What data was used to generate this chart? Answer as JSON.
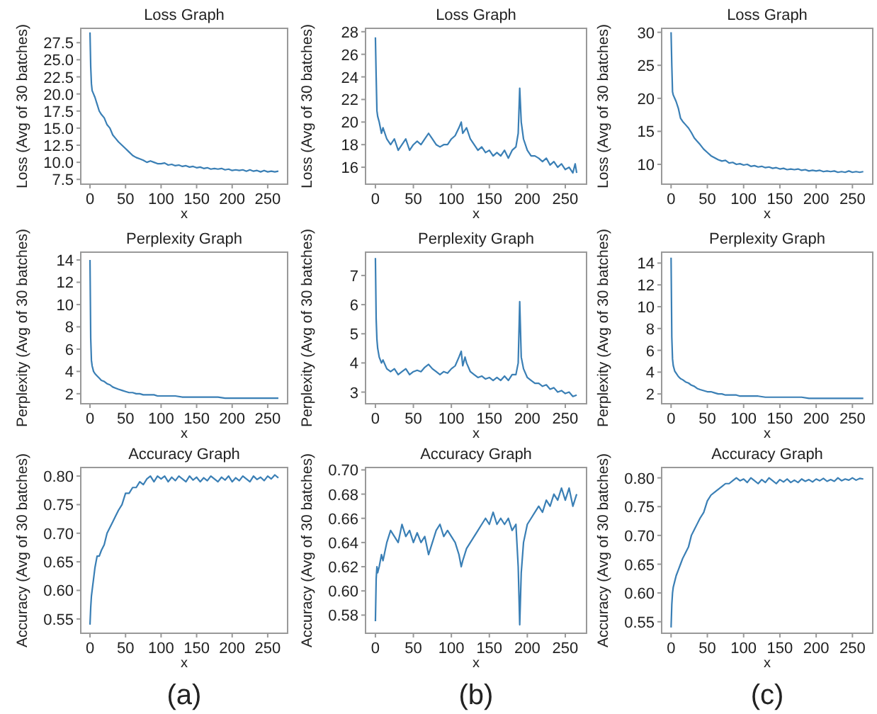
{
  "chart_data": [
    {
      "type": "line",
      "title": "Loss Graph",
      "xlabel": "x",
      "ylabel": "Loss (Avg of 30 batches)",
      "color": "#3a7fb5",
      "xlim": [
        -13,
        278
      ],
      "ylim": [
        6.8,
        29.6
      ],
      "xticks": [
        0,
        50,
        100,
        150,
        200,
        250
      ],
      "yticks": [
        7.5,
        {
          "value": 10,
          "label": "10.0"
        },
        12.5,
        {
          "value": 15,
          "label": "15.0"
        },
        17.5,
        {
          "value": 20,
          "label": "20.0"
        },
        22.5,
        {
          "value": 25,
          "label": "25.0"
        },
        27.5
      ],
      "x": [
        0,
        1,
        2,
        3,
        5,
        7,
        10,
        13,
        16,
        20,
        24,
        28,
        32,
        36,
        40,
        45,
        50,
        55,
        60,
        65,
        70,
        75,
        80,
        85,
        90,
        95,
        100,
        105,
        110,
        115,
        120,
        125,
        130,
        135,
        140,
        145,
        150,
        155,
        160,
        165,
        170,
        175,
        180,
        185,
        190,
        195,
        200,
        205,
        210,
        215,
        220,
        225,
        230,
        235,
        240,
        245,
        250,
        255,
        260,
        265
      ],
      "values": [
        29,
        24,
        21.5,
        20.5,
        20,
        19.5,
        18.5,
        17.5,
        17,
        16.5,
        15.5,
        15,
        14,
        13.5,
        13,
        12.5,
        12,
        11.5,
        11,
        10.7,
        10.5,
        10.3,
        10,
        10.2,
        10,
        9.8,
        9.8,
        9.9,
        9.6,
        9.7,
        9.5,
        9.6,
        9.4,
        9.5,
        9.3,
        9.4,
        9.2,
        9.3,
        9.1,
        9.2,
        9.0,
        9.1,
        9.0,
        9.1,
        8.9,
        9.0,
        8.8,
        8.9,
        8.8,
        8.9,
        8.7,
        8.9,
        8.7,
        8.8,
        8.6,
        8.8,
        8.6,
        8.7,
        8.6,
        8.7
      ]
    },
    {
      "type": "line",
      "title": "Loss Graph",
      "xlabel": "x",
      "ylabel": "Loss (Avg of 30 batches)",
      "color": "#3a7fb5",
      "xlim": [
        -13,
        278
      ],
      "ylim": [
        14.5,
        28.3
      ],
      "xticks": [
        0,
        50,
        100,
        150,
        200,
        250
      ],
      "yticks": [
        16,
        18,
        20,
        22,
        24,
        26,
        28
      ],
      "x": [
        0,
        1,
        2,
        3,
        5,
        8,
        10,
        15,
        20,
        25,
        30,
        35,
        40,
        45,
        50,
        55,
        60,
        65,
        70,
        75,
        80,
        85,
        90,
        95,
        100,
        105,
        110,
        113,
        115,
        120,
        125,
        130,
        135,
        140,
        145,
        150,
        155,
        160,
        165,
        170,
        175,
        180,
        185,
        188,
        190,
        192,
        195,
        200,
        205,
        210,
        215,
        220,
        225,
        230,
        235,
        240,
        245,
        250,
        255,
        260,
        263,
        265
      ],
      "values": [
        27.5,
        24,
        21,
        20.5,
        20,
        19,
        19.5,
        18.5,
        18,
        18.5,
        17.5,
        18,
        18.5,
        17.5,
        18,
        18.3,
        18,
        18.5,
        19,
        18.5,
        18,
        17.8,
        18,
        18,
        18.5,
        18.8,
        19.5,
        20,
        19,
        19.5,
        18.5,
        18,
        17.5,
        17.8,
        17.3,
        17.5,
        17,
        17.3,
        17,
        17.5,
        16.8,
        17.5,
        17.8,
        19,
        23,
        20,
        18.5,
        17.5,
        17,
        17,
        16.8,
        16.5,
        16.8,
        16.2,
        16.5,
        16,
        16.3,
        15.8,
        16,
        15.5,
        16.3,
        15.5
      ]
    },
    {
      "type": "line",
      "title": "Loss Graph",
      "xlabel": "x",
      "ylabel": "Loss (Avg of 30 batches)",
      "color": "#3a7fb5",
      "xlim": [
        -13,
        278
      ],
      "ylim": [
        7,
        30.6
      ],
      "xticks": [
        0,
        50,
        100,
        150,
        200,
        250
      ],
      "yticks": [
        10,
        15,
        20,
        25,
        30
      ],
      "x": [
        0,
        1,
        2,
        3,
        5,
        7,
        10,
        13,
        16,
        20,
        24,
        28,
        32,
        36,
        40,
        45,
        50,
        55,
        60,
        65,
        70,
        75,
        80,
        85,
        90,
        95,
        100,
        105,
        110,
        115,
        120,
        125,
        130,
        135,
        140,
        145,
        150,
        155,
        160,
        165,
        170,
        175,
        180,
        185,
        190,
        195,
        200,
        205,
        210,
        215,
        220,
        225,
        230,
        235,
        240,
        245,
        250,
        255,
        260,
        265
      ],
      "values": [
        30,
        25,
        21,
        20.5,
        20,
        19.5,
        18.5,
        17,
        16.5,
        16,
        15.5,
        14.8,
        14,
        13.5,
        13,
        12.3,
        11.8,
        11.3,
        11,
        10.7,
        10.5,
        10.6,
        10.2,
        10.3,
        10,
        10.1,
        9.9,
        10,
        9.7,
        9.8,
        9.6,
        9.7,
        9.5,
        9.6,
        9.4,
        9.5,
        9.3,
        9.4,
        9.2,
        9.3,
        9.2,
        9.3,
        9.1,
        9.2,
        9.0,
        9.1,
        9.0,
        9.1,
        8.9,
        9.0,
        8.9,
        9.0,
        8.8,
        8.9,
        8.8,
        9.0,
        8.8,
        8.9,
        8.8,
        8.9
      ]
    },
    {
      "type": "line",
      "title": "Perplexity Graph",
      "xlabel": "x",
      "ylabel": "Perplexity (Avg of 30 batches)",
      "color": "#3a7fb5",
      "xlim": [
        -13,
        278
      ],
      "ylim": [
        1.1,
        14.7
      ],
      "xticks": [
        0,
        50,
        100,
        150,
        200,
        250
      ],
      "yticks": [
        2,
        4,
        6,
        8,
        10,
        12,
        14
      ],
      "x": [
        0,
        1,
        2,
        3,
        5,
        7,
        10,
        13,
        16,
        20,
        24,
        28,
        32,
        36,
        40,
        45,
        50,
        55,
        60,
        65,
        70,
        75,
        80,
        85,
        90,
        95,
        100,
        110,
        120,
        130,
        140,
        150,
        160,
        170,
        180,
        190,
        200,
        210,
        220,
        230,
        240,
        250,
        260,
        265
      ],
      "values": [
        14,
        7,
        5,
        4.5,
        4,
        3.8,
        3.6,
        3.4,
        3.2,
        3.1,
        2.9,
        2.8,
        2.6,
        2.5,
        2.4,
        2.3,
        2.2,
        2.1,
        2.1,
        2,
        2,
        1.9,
        1.9,
        1.9,
        1.9,
        1.8,
        1.8,
        1.8,
        1.8,
        1.7,
        1.7,
        1.7,
        1.7,
        1.7,
        1.7,
        1.6,
        1.6,
        1.6,
        1.6,
        1.6,
        1.6,
        1.6,
        1.6,
        1.6
      ]
    },
    {
      "type": "line",
      "title": "Perplexity Graph",
      "xlabel": "x",
      "ylabel": "Perplexity (Avg of 30 batches)",
      "color": "#3a7fb5",
      "xlim": [
        -13,
        278
      ],
      "ylim": [
        2.6,
        7.8
      ],
      "xticks": [
        0,
        50,
        100,
        150,
        200,
        250
      ],
      "yticks": [
        3,
        4,
        5,
        6,
        7
      ],
      "x": [
        0,
        1,
        2,
        3,
        5,
        8,
        10,
        15,
        20,
        25,
        30,
        35,
        40,
        45,
        50,
        55,
        60,
        65,
        70,
        75,
        80,
        85,
        90,
        95,
        100,
        105,
        110,
        113,
        115,
        118,
        120,
        125,
        130,
        135,
        140,
        145,
        150,
        155,
        160,
        165,
        170,
        175,
        180,
        185,
        188,
        190,
        192,
        195,
        200,
        205,
        210,
        215,
        220,
        225,
        230,
        235,
        240,
        245,
        250,
        255,
        260,
        265
      ],
      "values": [
        7.6,
        5.5,
        4.8,
        4.5,
        4.2,
        4,
        4.1,
        3.8,
        3.7,
        3.8,
        3.6,
        3.7,
        3.8,
        3.6,
        3.7,
        3.75,
        3.7,
        3.85,
        3.95,
        3.8,
        3.7,
        3.6,
        3.7,
        3.65,
        3.8,
        3.9,
        4.2,
        4.4,
        3.9,
        4.2,
        4,
        3.7,
        3.6,
        3.5,
        3.55,
        3.45,
        3.5,
        3.4,
        3.5,
        3.4,
        3.55,
        3.4,
        3.6,
        3.6,
        4,
        6.1,
        4.2,
        3.8,
        3.5,
        3.4,
        3.3,
        3.3,
        3.2,
        3.25,
        3.1,
        3.15,
        3,
        3.05,
        2.95,
        3,
        2.85,
        2.9
      ]
    },
    {
      "type": "line",
      "title": "Perplexity Graph",
      "xlabel": "x",
      "ylabel": "Perplexity (Avg of 30 batches)",
      "color": "#3a7fb5",
      "xlim": [
        -13,
        278
      ],
      "ylim": [
        1.1,
        15
      ],
      "xticks": [
        0,
        50,
        100,
        150,
        200,
        250
      ],
      "yticks": [
        2,
        4,
        6,
        8,
        10,
        12,
        14
      ],
      "x": [
        0,
        1,
        2,
        3,
        5,
        7,
        10,
        13,
        16,
        20,
        24,
        28,
        32,
        36,
        40,
        45,
        50,
        55,
        60,
        65,
        70,
        75,
        80,
        85,
        90,
        95,
        100,
        110,
        120,
        130,
        140,
        150,
        160,
        170,
        180,
        190,
        200,
        210,
        220,
        230,
        240,
        250,
        260,
        265
      ],
      "values": [
        14.5,
        7.2,
        5.2,
        4.6,
        4.1,
        3.9,
        3.6,
        3.4,
        3.3,
        3.1,
        3,
        2.8,
        2.7,
        2.5,
        2.4,
        2.3,
        2.2,
        2.2,
        2.1,
        2,
        2,
        1.9,
        1.9,
        1.9,
        1.9,
        1.8,
        1.8,
        1.8,
        1.8,
        1.7,
        1.7,
        1.7,
        1.7,
        1.7,
        1.7,
        1.6,
        1.6,
        1.6,
        1.6,
        1.6,
        1.6,
        1.6,
        1.6,
        1.6
      ]
    },
    {
      "type": "line",
      "title": "Accuracy Graph",
      "xlabel": "x",
      "ylabel": "Accuracy (Avg of 30 batches)",
      "color": "#3a7fb5",
      "xlim": [
        -13,
        278
      ],
      "ylim": [
        0.525,
        0.815
      ],
      "xticks": [
        0,
        50,
        100,
        150,
        200,
        250
      ],
      "yticks": [
        0.55,
        {
          "value": 0.6,
          "label": "0.60"
        },
        0.65,
        {
          "value": 0.7,
          "label": "0.70"
        },
        0.75,
        {
          "value": 0.8,
          "label": "0.80"
        }
      ],
      "annotations": [
        "(a)"
      ],
      "x": [
        0,
        1,
        2,
        3,
        5,
        7,
        10,
        13,
        16,
        20,
        24,
        28,
        32,
        36,
        40,
        45,
        50,
        55,
        60,
        65,
        70,
        75,
        80,
        85,
        90,
        95,
        100,
        105,
        110,
        115,
        120,
        125,
        130,
        135,
        140,
        145,
        150,
        155,
        160,
        165,
        170,
        175,
        180,
        185,
        190,
        195,
        200,
        205,
        210,
        215,
        220,
        225,
        230,
        235,
        240,
        245,
        250,
        255,
        260,
        265
      ],
      "values": [
        0.54,
        0.57,
        0.59,
        0.6,
        0.62,
        0.64,
        0.66,
        0.66,
        0.67,
        0.68,
        0.7,
        0.71,
        0.72,
        0.73,
        0.74,
        0.75,
        0.77,
        0.77,
        0.78,
        0.78,
        0.79,
        0.785,
        0.795,
        0.8,
        0.79,
        0.8,
        0.795,
        0.8,
        0.79,
        0.798,
        0.792,
        0.8,
        0.795,
        0.79,
        0.8,
        0.793,
        0.798,
        0.79,
        0.797,
        0.792,
        0.8,
        0.795,
        0.79,
        0.798,
        0.793,
        0.8,
        0.79,
        0.797,
        0.792,
        0.8,
        0.795,
        0.79,
        0.8,
        0.794,
        0.798,
        0.792,
        0.8,
        0.795,
        0.802,
        0.797
      ]
    },
    {
      "type": "line",
      "title": "Accuracy Graph",
      "xlabel": "x",
      "ylabel": "Accuracy (Avg of 30 batches)",
      "color": "#3a7fb5",
      "xlim": [
        -13,
        278
      ],
      "ylim": [
        0.565,
        0.702
      ],
      "xticks": [
        0,
        50,
        100,
        150,
        200,
        250
      ],
      "yticks": [
        0.58,
        {
          "value": 0.6,
          "label": "0.60"
        },
        0.62,
        0.64,
        0.66,
        0.68,
        {
          "value": 0.7,
          "label": "0.70"
        }
      ],
      "annotations": [
        "(b)"
      ],
      "x": [
        0,
        1,
        2,
        3,
        5,
        8,
        10,
        15,
        20,
        25,
        30,
        35,
        40,
        45,
        50,
        55,
        60,
        65,
        70,
        75,
        80,
        85,
        90,
        95,
        100,
        105,
        110,
        113,
        115,
        120,
        125,
        130,
        135,
        140,
        145,
        150,
        155,
        160,
        165,
        170,
        175,
        180,
        185,
        188,
        190,
        192,
        195,
        200,
        205,
        210,
        215,
        220,
        225,
        230,
        235,
        240,
        245,
        250,
        255,
        260,
        265
      ],
      "values": [
        0.575,
        0.61,
        0.62,
        0.615,
        0.62,
        0.63,
        0.625,
        0.64,
        0.65,
        0.645,
        0.64,
        0.655,
        0.645,
        0.65,
        0.64,
        0.648,
        0.64,
        0.645,
        0.63,
        0.64,
        0.65,
        0.655,
        0.645,
        0.65,
        0.645,
        0.64,
        0.63,
        0.62,
        0.625,
        0.635,
        0.64,
        0.645,
        0.65,
        0.655,
        0.66,
        0.655,
        0.665,
        0.655,
        0.66,
        0.655,
        0.66,
        0.65,
        0.655,
        0.62,
        0.572,
        0.615,
        0.64,
        0.655,
        0.66,
        0.665,
        0.67,
        0.665,
        0.675,
        0.67,
        0.68,
        0.675,
        0.685,
        0.675,
        0.685,
        0.67,
        0.68
      ]
    },
    {
      "type": "line",
      "title": "Accuracy Graph",
      "xlabel": "x",
      "ylabel": "Accuracy (Avg of 30 batches)",
      "color": "#3a7fb5",
      "xlim": [
        -13,
        278
      ],
      "ylim": [
        0.53,
        0.818
      ],
      "xticks": [
        0,
        50,
        100,
        150,
        200,
        250
      ],
      "yticks": [
        0.55,
        {
          "value": 0.6,
          "label": "0.60"
        },
        0.65,
        {
          "value": 0.7,
          "label": "0.70"
        },
        0.75,
        {
          "value": 0.8,
          "label": "0.80"
        }
      ],
      "annotations": [
        "(c)"
      ],
      "x": [
        0,
        1,
        2,
        3,
        5,
        7,
        10,
        13,
        16,
        20,
        24,
        28,
        32,
        36,
        40,
        45,
        50,
        55,
        60,
        65,
        70,
        75,
        80,
        85,
        90,
        95,
        100,
        105,
        110,
        115,
        120,
        125,
        130,
        135,
        140,
        145,
        150,
        155,
        160,
        165,
        170,
        175,
        180,
        185,
        190,
        195,
        200,
        205,
        210,
        215,
        220,
        225,
        230,
        235,
        240,
        245,
        250,
        255,
        260,
        265
      ],
      "values": [
        0.54,
        0.58,
        0.6,
        0.61,
        0.62,
        0.63,
        0.64,
        0.65,
        0.66,
        0.67,
        0.68,
        0.7,
        0.71,
        0.72,
        0.73,
        0.74,
        0.76,
        0.77,
        0.775,
        0.78,
        0.785,
        0.79,
        0.79,
        0.795,
        0.8,
        0.795,
        0.798,
        0.792,
        0.8,
        0.795,
        0.79,
        0.797,
        0.792,
        0.8,
        0.795,
        0.79,
        0.797,
        0.793,
        0.798,
        0.792,
        0.796,
        0.792,
        0.798,
        0.794,
        0.797,
        0.793,
        0.798,
        0.795,
        0.799,
        0.794,
        0.797,
        0.794,
        0.8,
        0.795,
        0.798,
        0.796,
        0.8,
        0.796,
        0.799,
        0.798
      ]
    }
  ]
}
